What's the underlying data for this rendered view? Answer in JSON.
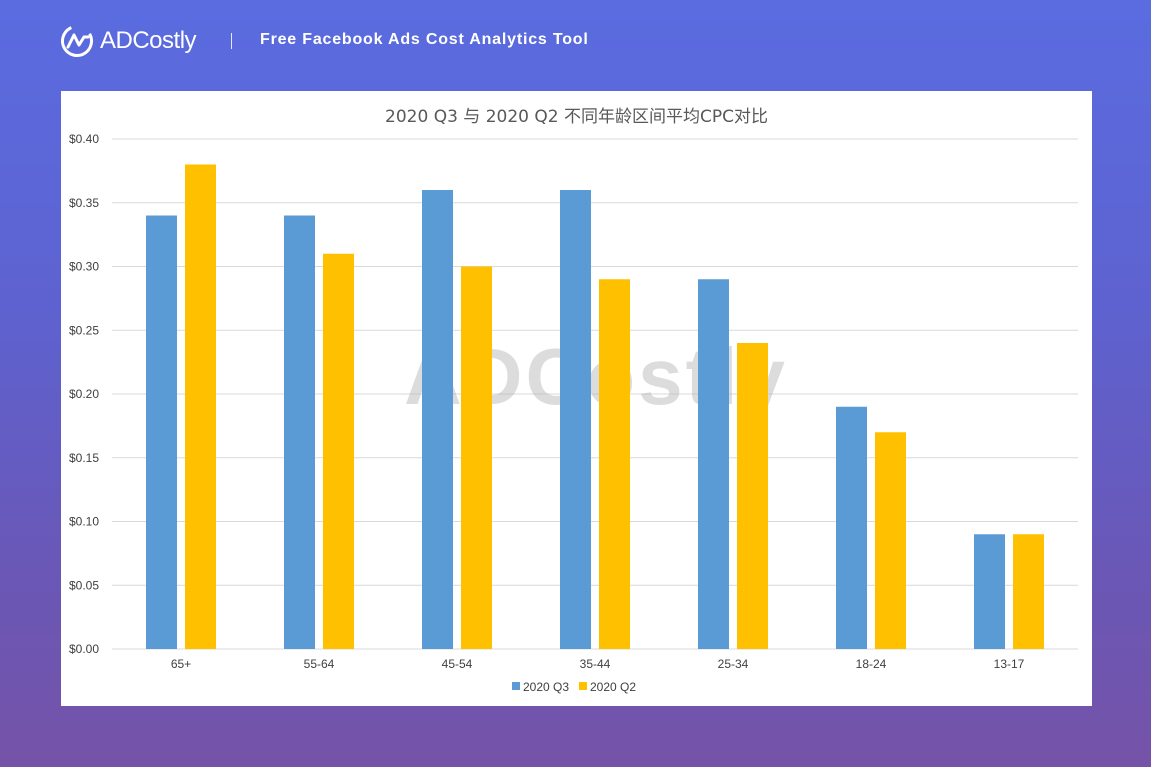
{
  "header": {
    "brand_name": "ADCostly",
    "tagline": "Free Facebook Ads Cost Analytics Tool",
    "logo_icon": "adcostly-logo-icon"
  },
  "watermark": "ADCostly",
  "colors": {
    "series_q3": "#5b9bd5",
    "series_q2": "#ffc000",
    "grid": "#d9d9d9"
  },
  "chart_data": {
    "type": "bar",
    "title": "2020 Q3 与 2020 Q2 不同年龄区间平均CPC对比",
    "categories": [
      "65+",
      "55-64",
      "45-54",
      "35-44",
      "25-34",
      "18-24",
      "13-17"
    ],
    "series": [
      {
        "name": "2020 Q3",
        "values": [
          0.34,
          0.34,
          0.36,
          0.36,
          0.29,
          0.19,
          0.09
        ]
      },
      {
        "name": "2020 Q2",
        "values": [
          0.38,
          0.31,
          0.3,
          0.29,
          0.24,
          0.17,
          0.09
        ]
      }
    ],
    "y_ticks": [
      "$0.00",
      "$0.05",
      "$0.10",
      "$0.15",
      "$0.20",
      "$0.25",
      "$0.30",
      "$0.35",
      "$0.40"
    ],
    "ylim": [
      0,
      0.4
    ],
    "xlabel": "",
    "ylabel": "",
    "grid": true,
    "legend_position": "bottom"
  }
}
